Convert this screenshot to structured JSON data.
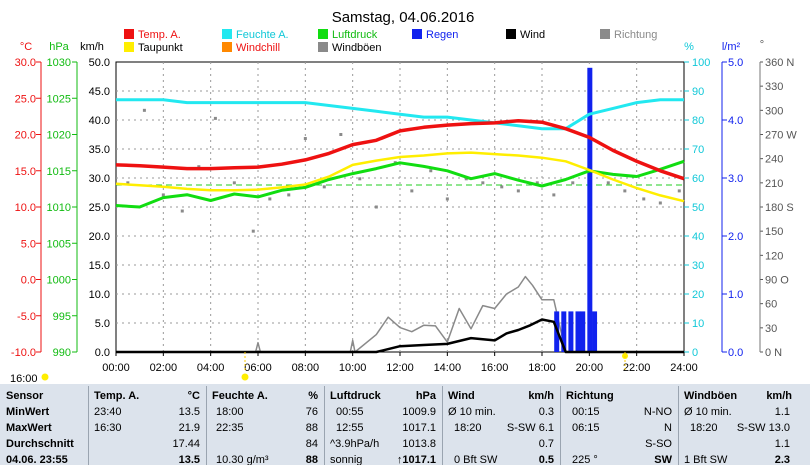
{
  "chart_data": {
    "type": "line",
    "title": "Samstag, 04.06.2016",
    "x_ticks": [
      "00:00",
      "02:00",
      "04:00",
      "06:00",
      "08:00",
      "10:00",
      "12:00",
      "14:00",
      "16:00",
      "18:00",
      "20:00",
      "22:00",
      "24:00"
    ],
    "axes": {
      "temp": {
        "unit": "°C",
        "ticks": [
          "30.0",
          "25.0",
          "20.0",
          "15.0",
          "10.0",
          "5.0",
          "0.0",
          "-5.0",
          "-10.0"
        ],
        "range": [
          -10,
          30
        ]
      },
      "pressure": {
        "unit": "hPa",
        "ticks": [
          "1030",
          "1025",
          "1020",
          "1015",
          "1010",
          "1005",
          "1000",
          "995",
          "990"
        ],
        "range": [
          990,
          1030
        ]
      },
      "wind": {
        "unit": "km/h",
        "ticks": [
          "50.0",
          "45.0",
          "40.0",
          "35.0",
          "30.0",
          "25.0",
          "20.0",
          "15.0",
          "10.0",
          "5.0",
          "0.0"
        ],
        "range": [
          0,
          50
        ]
      },
      "humidity": {
        "unit": "%",
        "ticks": [
          "100",
          "90",
          "80",
          "70",
          "60",
          "50",
          "40",
          "30",
          "20",
          "10",
          "0"
        ],
        "range": [
          0,
          100
        ]
      },
      "rain": {
        "unit": "l/m²",
        "ticks": [
          "5.0",
          "4.0",
          "3.0",
          "2.0",
          "1.0",
          "0.0"
        ],
        "range": [
          0,
          5
        ]
      },
      "direction": {
        "unit": "°",
        "ticks": [
          "360 N",
          "330",
          "300",
          "270 W",
          "240",
          "210",
          "180 S",
          "150",
          "120",
          "90 O",
          "60",
          "30",
          "0 N"
        ],
        "range": [
          0,
          360
        ]
      }
    },
    "legend": [
      {
        "name": "Temp. A.",
        "color": "#ee1111"
      },
      {
        "name": "Feuchte A.",
        "color": "#22e8f0"
      },
      {
        "name": "Luftdruck",
        "color": "#11dd11"
      },
      {
        "name": "Regen",
        "color": "#1122ee"
      },
      {
        "name": "Wind",
        "color": "#000000"
      },
      {
        "name": "Richtung",
        "color": "#8a8a8a"
      },
      {
        "name": "Taupunkt",
        "color": "#ffee00"
      },
      {
        "name": "Windchill",
        "color": "#ff8800"
      },
      {
        "name": "Windböen",
        "color": "#8a8a8a"
      }
    ],
    "time_marker_left": "16:00",
    "series": [
      {
        "name": "Temp. A.",
        "axis": "temp",
        "color": "#ee1111",
        "x": [
          0,
          1,
          2,
          3,
          4,
          5,
          6,
          7,
          8,
          9,
          10,
          11,
          12,
          13,
          14,
          15,
          16,
          17,
          18,
          19,
          20,
          21,
          22,
          23,
          24
        ],
        "y": [
          15.8,
          15.7,
          15.5,
          15.3,
          15.3,
          15.4,
          15.5,
          15.9,
          16.5,
          17.4,
          18.6,
          19.2,
          20.5,
          21.0,
          21.3,
          21.5,
          21.6,
          21.9,
          21.7,
          20.8,
          19.6,
          17.8,
          16.3,
          15.0,
          13.9
        ]
      },
      {
        "name": "Feuchte A.",
        "axis": "humidity",
        "color": "#22e8f0",
        "x": [
          0,
          1,
          2,
          3,
          4,
          5,
          6,
          7,
          8,
          9,
          10,
          11,
          12,
          13,
          14,
          15,
          16,
          17,
          18,
          19,
          20,
          21,
          22,
          23,
          24
        ],
        "y": [
          87,
          87,
          87,
          86,
          86,
          86,
          86,
          86,
          86,
          85,
          84,
          83,
          82,
          81,
          81,
          80,
          79,
          78,
          77,
          77,
          82,
          84,
          86,
          87,
          87
        ]
      },
      {
        "name": "Luftdruck",
        "axis": "pressure",
        "color": "#11dd11",
        "x": [
          0,
          1,
          2,
          3,
          4,
          5,
          6,
          7,
          8,
          9,
          10,
          11,
          12,
          13,
          14,
          15,
          16,
          17,
          18,
          19,
          20,
          21,
          22,
          23,
          24
        ],
        "y": [
          1010.2,
          1010.0,
          1011.3,
          1011.7,
          1010.9,
          1011.8,
          1011.4,
          1012.3,
          1012.7,
          1013.8,
          1014.6,
          1015.3,
          1016.1,
          1015.6,
          1015.0,
          1013.9,
          1014.6,
          1013.7,
          1012.9,
          1013.8,
          1015.0,
          1014.5,
          1014.2,
          1015.2,
          1016.3
        ]
      },
      {
        "name": "Taupunkt",
        "axis": "temp",
        "color": "#ffee00",
        "x": [
          0,
          1,
          2,
          3,
          4,
          5,
          6,
          7,
          8,
          9,
          10,
          11,
          12,
          13,
          14,
          15,
          16,
          17,
          18,
          19,
          20,
          21,
          22,
          23,
          24
        ],
        "y": [
          13.2,
          13.0,
          12.8,
          12.5,
          12.3,
          12.3,
          12.4,
          12.7,
          13.1,
          14.2,
          15.8,
          16.4,
          16.9,
          17.1,
          17.4,
          17.5,
          17.3,
          17.1,
          16.8,
          16.3,
          15.1,
          13.8,
          12.6,
          11.6,
          10.8
        ]
      },
      {
        "name": "Wind",
        "axis": "wind",
        "color": "#000000",
        "x": [
          0,
          10,
          11,
          12,
          13,
          14,
          15,
          16,
          16.5,
          17,
          17.5,
          18,
          18.5,
          19,
          20,
          21,
          22,
          23,
          24
        ],
        "y": [
          0,
          0,
          0,
          1.0,
          1.2,
          1.4,
          2.4,
          2.0,
          3.2,
          3.8,
          4.6,
          5.6,
          5.2,
          0,
          0,
          0,
          0,
          0,
          0
        ]
      },
      {
        "name": "Windböen",
        "axis": "wind",
        "color": "#8a8a8a",
        "x": [
          0,
          5.9,
          6,
          6.1,
          9.9,
          10,
          10.1,
          11,
          11.5,
          12,
          12.5,
          13,
          13.5,
          14,
          14.5,
          15,
          15.5,
          16,
          16.5,
          17,
          17.3,
          17.6,
          18,
          18.5,
          19,
          20,
          21,
          22,
          23,
          24
        ],
        "y": [
          0,
          0,
          1.6,
          0,
          0,
          2.0,
          0,
          3.0,
          6.0,
          4.2,
          3.5,
          4.6,
          4.5,
          1.7,
          7.5,
          4.0,
          8.0,
          7.5,
          10.0,
          11.2,
          13.0,
          11.5,
          9.0,
          9.0,
          0,
          0,
          0,
          0,
          0,
          0
        ]
      },
      {
        "name": "Regen",
        "axis": "rain",
        "color": "#1122ee",
        "x": [
          18.6,
          18.9,
          19.2,
          19.5,
          19.7,
          20.0,
          20.2
        ],
        "y": [
          0.7,
          0.7,
          0.7,
          0.7,
          0.7,
          4.9,
          0.7
        ]
      },
      {
        "name": "Richtung",
        "axis": "direction",
        "color": "#8a8a8a",
        "x": [
          0.5,
          1.2,
          2.0,
          2.8,
          3.5,
          4.2,
          5.0,
          5.8,
          6.5,
          7.3,
          8.0,
          8.8,
          9.5,
          10.3,
          11.0,
          11.8,
          12.5,
          13.3,
          14.0,
          14.8,
          15.5,
          16.3,
          17.0,
          17.8,
          18.5,
          19.3,
          20.0,
          20.8,
          21.5,
          22.3,
          23.0,
          23.8
        ],
        "y": [
          210,
          300,
          195,
          175,
          230,
          290,
          210,
          150,
          190,
          195,
          265,
          205,
          270,
          215,
          180,
          235,
          200,
          225,
          190,
          215,
          210,
          205,
          200,
          210,
          195,
          210,
          260,
          210,
          200,
          190,
          185,
          200
        ]
      }
    ]
  },
  "stats": {
    "sensor": {
      "title": "Sensor",
      "labels": [
        "MinWert",
        "MaxWert",
        "Durchschnitt",
        "04.06. 23:55"
      ]
    },
    "temp": {
      "title": "Temp. A.",
      "unit": "°C",
      "min_time": "23:40",
      "min": "13.5",
      "max_time": "16:30",
      "max": "21.9",
      "avg": "17.44",
      "current": "13.5"
    },
    "humidity": {
      "title": "Feuchte A.",
      "unit": "%",
      "min_time": "18:00",
      "min": "76",
      "max_time": "22:35",
      "max": "88",
      "avg": "84",
      "current_extra": "10.30 g/m³",
      "current": "88"
    },
    "pressure": {
      "title": "Luftdruck",
      "unit": "hPa",
      "min_time": "00:55",
      "min": "1009.9",
      "max_time": "12:55",
      "max": "1017.1",
      "avg_extra": "^3.9hPa/h",
      "avg": "1013.8",
      "current_extra": "sonnig",
      "current": "↑1017.1"
    },
    "wind": {
      "title": "Wind",
      "unit": "km/h",
      "min_time": "Ø 10 min.",
      "min": "0.3",
      "max_time": "18:20",
      "max": "S-SW 6.1",
      "avg": "0.7",
      "current_extra": "0 Bft SW",
      "current": "0.5"
    },
    "direction": {
      "title": "Richtung",
      "min_time": "00:15",
      "min": "N-NO",
      "max_time": "06:15",
      "max": "N",
      "avg": "S-SO",
      "current_extra": "225 °",
      "current": "SW"
    },
    "gust": {
      "title": "Windböen",
      "unit": "km/h",
      "min_time": "Ø 10 min.",
      "min": "1.1",
      "max_time": "18:20",
      "max": "S-SW 13.0",
      "avg": "1.1",
      "current_extra": "1 Bft SW",
      "current": "2.3"
    }
  }
}
